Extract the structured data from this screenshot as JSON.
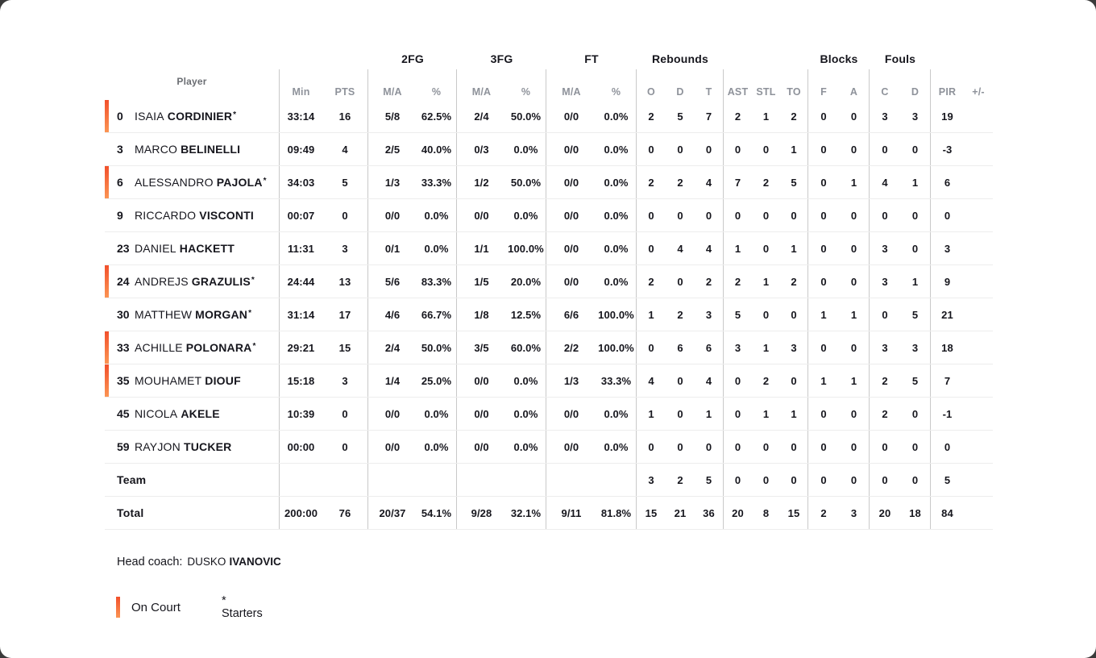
{
  "colors": {
    "on_court_accent_top": "#f2502b",
    "on_court_accent_bottom": "#fb9453",
    "header_gray": "#8e929a",
    "text": "#16161d"
  },
  "table": {
    "player_header": "Player",
    "star_symbol": "*",
    "groups": [
      "2FG",
      "3FG",
      "FT",
      "Rebounds",
      "Blocks",
      "Fouls"
    ],
    "columns": [
      "Min",
      "PTS",
      "M/A",
      "%",
      "M/A",
      "%",
      "M/A",
      "%",
      "O",
      "D",
      "T",
      "AST",
      "STL",
      "TO",
      "F",
      "A",
      "C",
      "D",
      "PIR",
      "+/-"
    ],
    "rows": [
      {
        "num": "0",
        "first": "ISAIA",
        "last": "CORDINIER",
        "starter": true,
        "on_court": true,
        "values": [
          "33:14",
          "16",
          "5/8",
          "62.5%",
          "2/4",
          "50.0%",
          "0/0",
          "0.0%",
          "2",
          "5",
          "7",
          "2",
          "1",
          "2",
          "0",
          "0",
          "3",
          "3",
          "19",
          ""
        ]
      },
      {
        "num": "3",
        "first": "MARCO",
        "last": "BELINELLI",
        "starter": false,
        "on_court": false,
        "values": [
          "09:49",
          "4",
          "2/5",
          "40.0%",
          "0/3",
          "0.0%",
          "0/0",
          "0.0%",
          "0",
          "0",
          "0",
          "0",
          "0",
          "1",
          "0",
          "0",
          "0",
          "0",
          "-3",
          ""
        ]
      },
      {
        "num": "6",
        "first": "ALESSANDRO",
        "last": "PAJOLA",
        "starter": true,
        "on_court": true,
        "values": [
          "34:03",
          "5",
          "1/3",
          "33.3%",
          "1/2",
          "50.0%",
          "0/0",
          "0.0%",
          "2",
          "2",
          "4",
          "7",
          "2",
          "5",
          "0",
          "1",
          "4",
          "1",
          "6",
          ""
        ]
      },
      {
        "num": "9",
        "first": "RICCARDO",
        "last": "VISCONTI",
        "starter": false,
        "on_court": false,
        "values": [
          "00:07",
          "0",
          "0/0",
          "0.0%",
          "0/0",
          "0.0%",
          "0/0",
          "0.0%",
          "0",
          "0",
          "0",
          "0",
          "0",
          "0",
          "0",
          "0",
          "0",
          "0",
          "0",
          ""
        ]
      },
      {
        "num": "23",
        "first": "DANIEL",
        "last": "HACKETT",
        "starter": false,
        "on_court": false,
        "values": [
          "11:31",
          "3",
          "0/1",
          "0.0%",
          "1/1",
          "100.0%",
          "0/0",
          "0.0%",
          "0",
          "4",
          "4",
          "1",
          "0",
          "1",
          "0",
          "0",
          "3",
          "0",
          "3",
          ""
        ]
      },
      {
        "num": "24",
        "first": "ANDREJS",
        "last": "GRAZULIS",
        "starter": true,
        "on_court": true,
        "values": [
          "24:44",
          "13",
          "5/6",
          "83.3%",
          "1/5",
          "20.0%",
          "0/0",
          "0.0%",
          "2",
          "0",
          "2",
          "2",
          "1",
          "2",
          "0",
          "0",
          "3",
          "1",
          "9",
          ""
        ]
      },
      {
        "num": "30",
        "first": "MATTHEW",
        "last": "MORGAN",
        "starter": true,
        "on_court": false,
        "values": [
          "31:14",
          "17",
          "4/6",
          "66.7%",
          "1/8",
          "12.5%",
          "6/6",
          "100.0%",
          "1",
          "2",
          "3",
          "5",
          "0",
          "0",
          "1",
          "1",
          "0",
          "5",
          "21",
          ""
        ]
      },
      {
        "num": "33",
        "first": "ACHILLE",
        "last": "POLONARA",
        "starter": true,
        "on_court": true,
        "values": [
          "29:21",
          "15",
          "2/4",
          "50.0%",
          "3/5",
          "60.0%",
          "2/2",
          "100.0%",
          "0",
          "6",
          "6",
          "3",
          "1",
          "3",
          "0",
          "0",
          "3",
          "3",
          "18",
          ""
        ]
      },
      {
        "num": "35",
        "first": "MOUHAMET",
        "last": "DIOUF",
        "starter": false,
        "on_court": true,
        "values": [
          "15:18",
          "3",
          "1/4",
          "25.0%",
          "0/0",
          "0.0%",
          "1/3",
          "33.3%",
          "4",
          "0",
          "4",
          "0",
          "2",
          "0",
          "1",
          "1",
          "2",
          "5",
          "7",
          ""
        ]
      },
      {
        "num": "45",
        "first": "NICOLA",
        "last": "AKELE",
        "starter": false,
        "on_court": false,
        "values": [
          "10:39",
          "0",
          "0/0",
          "0.0%",
          "0/0",
          "0.0%",
          "0/0",
          "0.0%",
          "1",
          "0",
          "1",
          "0",
          "1",
          "1",
          "0",
          "0",
          "2",
          "0",
          "-1",
          ""
        ]
      },
      {
        "num": "59",
        "first": "RAYJON",
        "last": "TUCKER",
        "starter": false,
        "on_court": false,
        "values": [
          "00:00",
          "0",
          "0/0",
          "0.0%",
          "0/0",
          "0.0%",
          "0/0",
          "0.0%",
          "0",
          "0",
          "0",
          "0",
          "0",
          "0",
          "0",
          "0",
          "0",
          "0",
          "0",
          ""
        ]
      },
      {
        "num": "",
        "first": "",
        "last": "Team",
        "starter": false,
        "on_court": false,
        "label_row": true,
        "values": [
          "",
          "",
          "",
          "",
          "",
          "",
          "",
          "",
          "3",
          "2",
          "5",
          "0",
          "0",
          "0",
          "0",
          "0",
          "0",
          "0",
          "5",
          ""
        ]
      },
      {
        "num": "",
        "first": "",
        "last": "Total",
        "starter": false,
        "on_court": false,
        "label_row": true,
        "values": [
          "200:00",
          "76",
          "20/37",
          "54.1%",
          "9/28",
          "32.1%",
          "9/11",
          "81.8%",
          "15",
          "21",
          "36",
          "20",
          "8",
          "15",
          "2",
          "3",
          "20",
          "18",
          "84",
          ""
        ]
      }
    ]
  },
  "coach": {
    "label": "Head coach:",
    "first_name": "DUSKO",
    "last_name": "IVANOVIC"
  },
  "legend": {
    "on_court": "On Court",
    "starters": "* Starters"
  }
}
